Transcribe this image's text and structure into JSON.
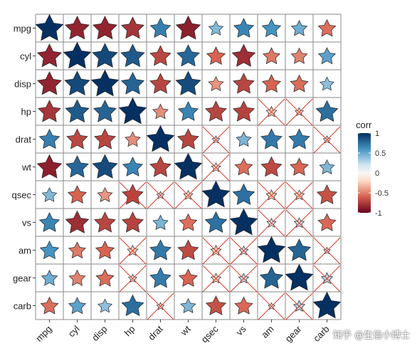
{
  "chart_data": {
    "type": "heatmap",
    "shape": "star",
    "variables": [
      "mpg",
      "cyl",
      "disp",
      "hp",
      "drat",
      "wt",
      "qsec",
      "vs",
      "am",
      "gear",
      "carb"
    ],
    "matrix": [
      [
        1.0,
        -0.85,
        -0.85,
        -0.78,
        0.68,
        -0.87,
        0.42,
        0.66,
        0.6,
        0.48,
        -0.55
      ],
      [
        -0.85,
        1.0,
        0.9,
        0.83,
        -0.7,
        0.78,
        -0.59,
        -0.81,
        -0.52,
        -0.49,
        0.53
      ],
      [
        -0.85,
        0.9,
        1.0,
        0.79,
        -0.71,
        0.89,
        -0.43,
        -0.71,
        -0.59,
        -0.56,
        0.39
      ],
      [
        -0.78,
        0.83,
        0.79,
        1.0,
        -0.45,
        0.66,
        -0.71,
        -0.72,
        -0.24,
        -0.13,
        0.75
      ],
      [
        0.68,
        -0.7,
        -0.71,
        -0.45,
        1.0,
        -0.71,
        0.09,
        0.44,
        0.71,
        0.7,
        -0.09
      ],
      [
        -0.87,
        0.78,
        0.89,
        0.66,
        -0.71,
        1.0,
        -0.17,
        -0.55,
        -0.69,
        -0.58,
        0.43
      ],
      [
        0.42,
        -0.59,
        -0.43,
        -0.71,
        0.09,
        -0.17,
        1.0,
        0.74,
        -0.23,
        -0.21,
        -0.66
      ],
      [
        0.66,
        -0.81,
        -0.71,
        -0.72,
        0.44,
        -0.55,
        0.74,
        1.0,
        0.17,
        0.21,
        -0.57
      ],
      [
        0.6,
        -0.52,
        -0.59,
        -0.24,
        0.71,
        -0.69,
        -0.23,
        0.17,
        1.0,
        0.79,
        0.06
      ],
      [
        0.48,
        -0.49,
        -0.56,
        -0.13,
        0.7,
        -0.58,
        -0.21,
        0.21,
        0.79,
        1.0,
        0.27
      ],
      [
        -0.55,
        0.53,
        0.39,
        0.75,
        -0.09,
        0.43,
        -0.66,
        -0.57,
        0.06,
        0.27,
        1.0
      ]
    ],
    "insignificant": [
      [
        3,
        8
      ],
      [
        3,
        9
      ],
      [
        4,
        6
      ],
      [
        4,
        10
      ],
      [
        5,
        6
      ],
      [
        6,
        3
      ],
      [
        6,
        4
      ],
      [
        6,
        5
      ],
      [
        6,
        8
      ],
      [
        6,
        9
      ],
      [
        7,
        8
      ],
      [
        7,
        9
      ],
      [
        8,
        3
      ],
      [
        8,
        6
      ],
      [
        8,
        7
      ],
      [
        8,
        10
      ],
      [
        9,
        3
      ],
      [
        9,
        6
      ],
      [
        9,
        7
      ],
      [
        9,
        10
      ],
      [
        10,
        4
      ],
      [
        10,
        8
      ],
      [
        10,
        9
      ]
    ],
    "legend": {
      "title": "corr",
      "ticks": [
        "1",
        "0.5",
        "0",
        "-0.5",
        "-1"
      ],
      "tick_values": [
        1,
        0.5,
        0,
        -0.5,
        -1
      ]
    },
    "colors": {
      "negative": "#67001F",
      "neutral": "#F7F7F7",
      "positive": "#053061",
      "insignificant_cross": "#d7301f",
      "grid": "#888888"
    }
  },
  "watermark": "知乎 @生信小博士"
}
